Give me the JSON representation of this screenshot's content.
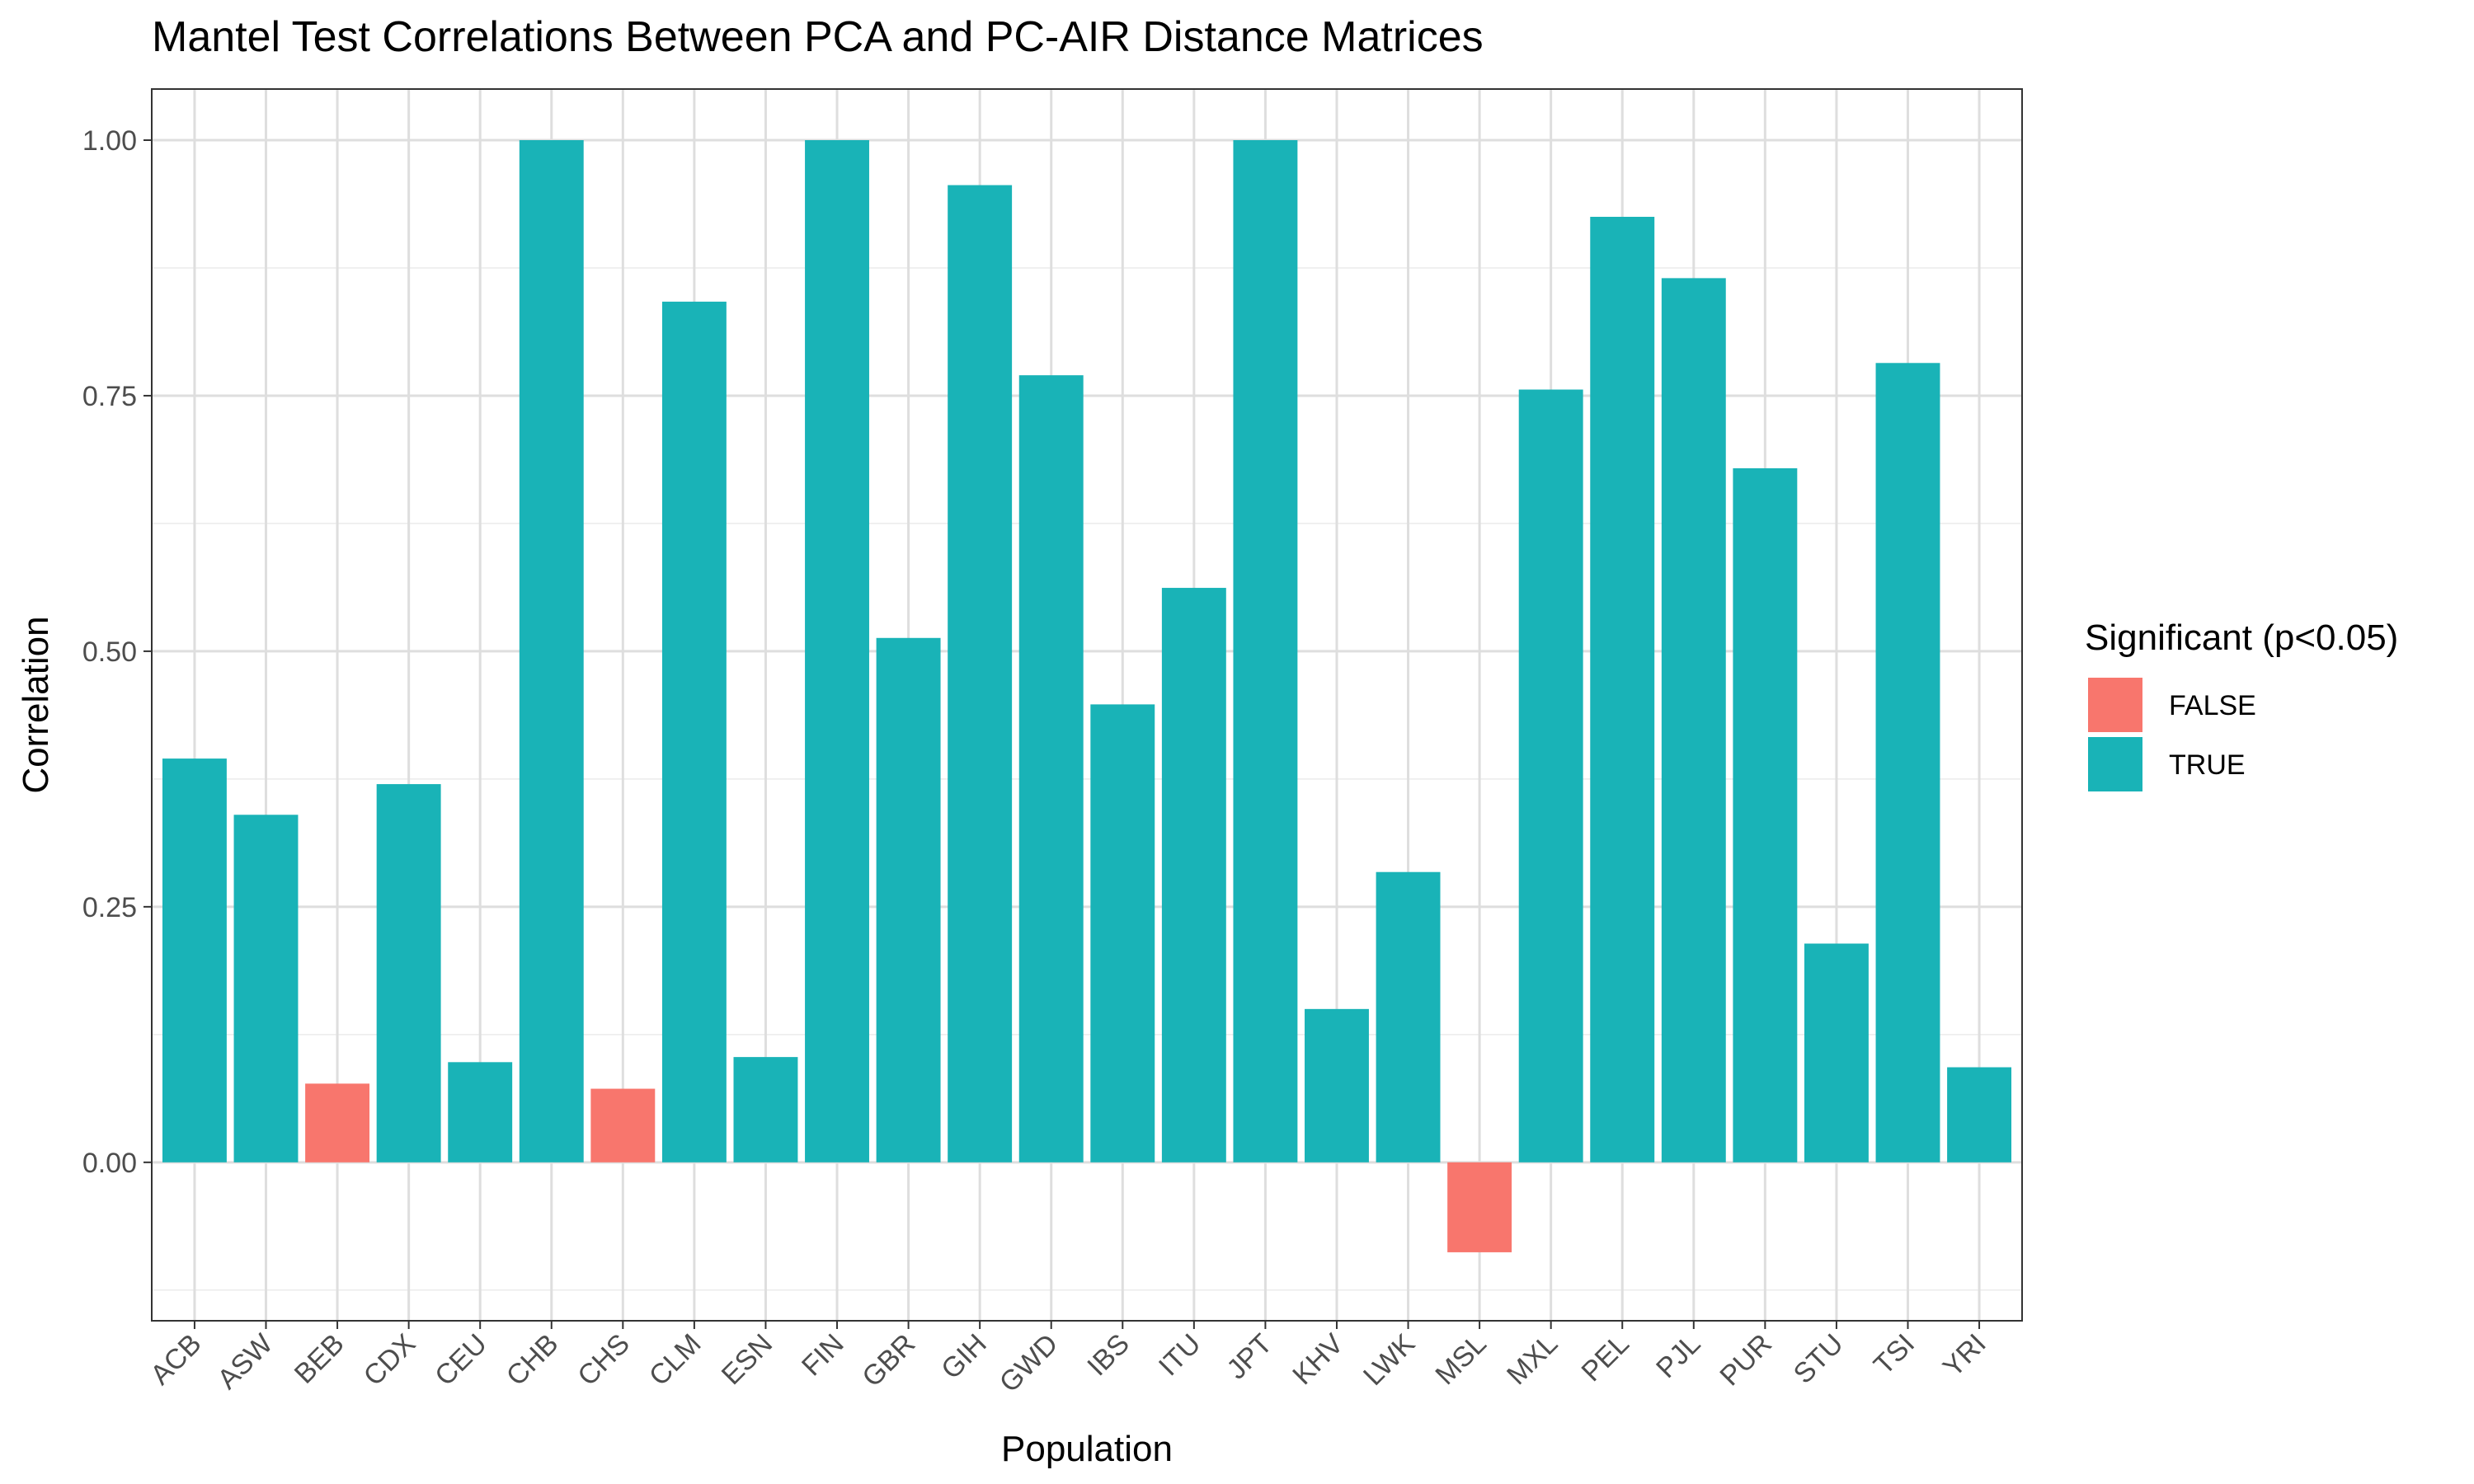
{
  "chart_data": {
    "type": "bar",
    "title": "Mantel Test Correlations Between PCA and PC-AIR Distance Matrices",
    "xlabel": "Population",
    "ylabel": "Correlation",
    "ylim": [
      -0.155,
      1.05
    ],
    "yticks": [
      0.0,
      0.25,
      0.5,
      0.75,
      1.0
    ],
    "ytick_labels": [
      "0.00",
      "0.25",
      "0.50",
      "0.75",
      "1.00"
    ],
    "grid": true,
    "legend_position": "right",
    "categories": [
      "ACB",
      "ASW",
      "BEB",
      "CDX",
      "CEU",
      "CHB",
      "CHS",
      "CLM",
      "ESN",
      "FIN",
      "GBR",
      "GIH",
      "GWD",
      "IBS",
      "ITU",
      "JPT",
      "KHV",
      "LWK",
      "MSL",
      "MXL",
      "PEL",
      "PJL",
      "PUR",
      "STU",
      "TSI",
      "YRI"
    ],
    "values": [
      0.395,
      0.34,
      0.077,
      0.37,
      0.098,
      1.0,
      0.072,
      0.842,
      0.103,
      1.0,
      0.513,
      0.956,
      0.77,
      0.448,
      0.562,
      1.0,
      0.15,
      0.284,
      -0.088,
      0.756,
      0.925,
      0.865,
      0.679,
      0.214,
      0.782,
      0.093
    ],
    "significant": [
      true,
      true,
      false,
      true,
      true,
      true,
      false,
      true,
      true,
      true,
      true,
      true,
      true,
      true,
      true,
      true,
      true,
      true,
      false,
      true,
      true,
      true,
      true,
      true,
      true,
      true
    ],
    "legend": {
      "title": "Significant (p<0.05)",
      "entries": [
        {
          "label": "FALSE",
          "color": "#F8766D"
        },
        {
          "label": "TRUE",
          "color": "#00BFC4"
        }
      ]
    },
    "colors": {
      "FALSE": "#F8766D",
      "TRUE": "#19B3B7"
    }
  }
}
